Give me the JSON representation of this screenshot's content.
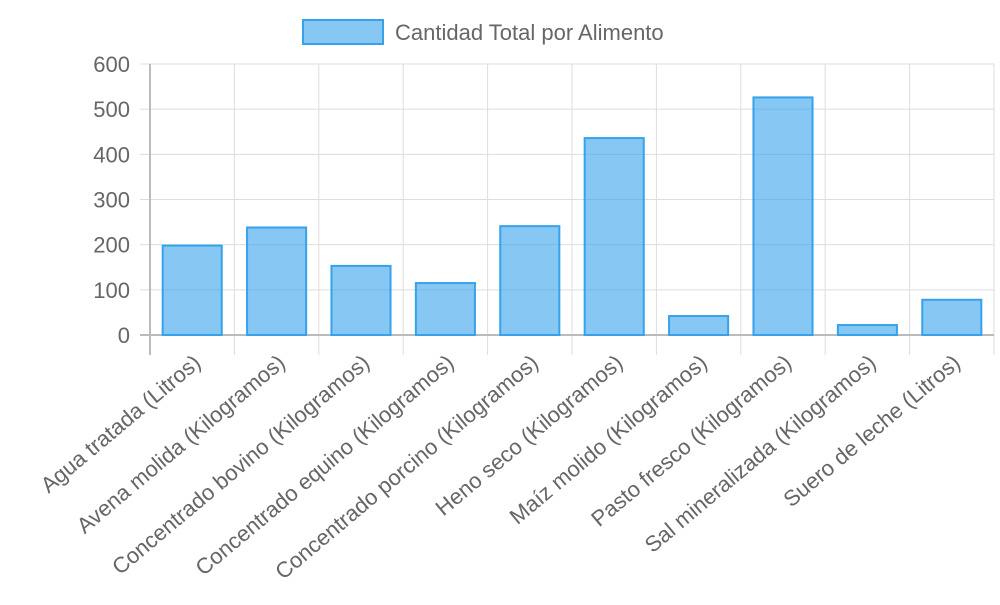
{
  "chart_data": {
    "type": "bar",
    "categories": [
      "Agua tratada (Litros)",
      "Avena molida (Kilogramos)",
      "Concentrado bovino (Kilogramos)",
      "Concentrado equino (Kilogramos)",
      "Concentrado porcino (Kilogramos)",
      "Heno seco (Kilogramos)",
      "Maíz molido (Kilogramos)",
      "Pasto fresco (Kilogramos)",
      "Sal mineralizada (Kilogramos)",
      "Suero de leche (Litros)"
    ],
    "series": [
      {
        "name": "Cantidad Total por Alimento",
        "values": [
          198,
          238,
          153,
          115,
          241,
          436,
          42,
          526,
          22,
          78
        ]
      }
    ],
    "ylim": [
      0,
      600
    ],
    "yticks": [
      0,
      100,
      200,
      300,
      400,
      500,
      600
    ],
    "grid": true,
    "legend_position": "top",
    "colors": {
      "bar_fill": "rgba(54,162,235,0.6)",
      "bar_stroke": "#36a2eb",
      "grid": "#dddddd",
      "axis": "#bbbbbb",
      "text": "#666666"
    }
  }
}
